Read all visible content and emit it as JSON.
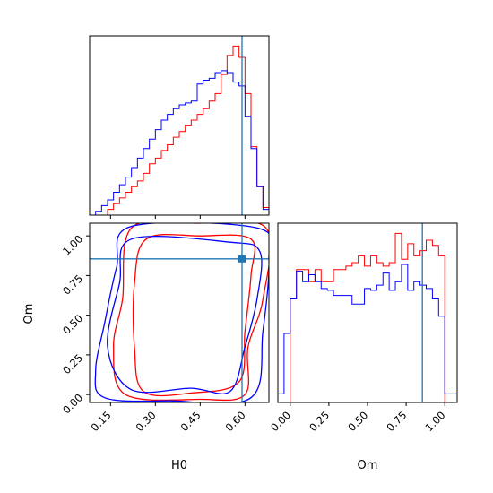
{
  "chart_data": [
    {
      "id": "h0-marginal",
      "type": "histogram",
      "title": "",
      "xlabel": "",
      "ylabel": "",
      "xlim": [
        0.08,
        0.68
      ],
      "truth": 0.59,
      "truth_color": "#1f77b4",
      "bin_edges": [
        0.08,
        0.1,
        0.12,
        0.14,
        0.16,
        0.18,
        0.2,
        0.22,
        0.24,
        0.26,
        0.28,
        0.3,
        0.32,
        0.34,
        0.36,
        0.38,
        0.4,
        0.42,
        0.44,
        0.46,
        0.48,
        0.5,
        0.52,
        0.54,
        0.56,
        0.58,
        0.6,
        0.62,
        0.64,
        0.66,
        0.68
      ],
      "series": [
        {
          "color": "#ff0000",
          "values": [
            0,
            0,
            0,
            0.3,
            0.6,
            0.9,
            1.2,
            1.5,
            1.8,
            2.2,
            2.7,
            3.0,
            3.4,
            3.7,
            4.1,
            4.4,
            4.7,
            5.0,
            5.3,
            5.6,
            6.0,
            6.4,
            7.4,
            8.4,
            8.9,
            8.3,
            6.4,
            3.6,
            1.5,
            0.4
          ]
        },
        {
          "color": "#0000ff",
          "values": [
            0,
            0.2,
            0.5,
            0.8,
            1.2,
            1.6,
            2.0,
            2.5,
            3.0,
            3.5,
            4.0,
            4.5,
            5.0,
            5.3,
            5.6,
            5.8,
            5.9,
            6.0,
            6.9,
            7.1,
            7.2,
            7.5,
            7.6,
            7.5,
            7.0,
            6.8,
            5.2,
            3.5,
            1.5,
            0.3
          ]
        }
      ]
    },
    {
      "id": "joint-contour",
      "type": "contour",
      "title": "",
      "xlabel": "H0",
      "ylabel": "Om",
      "xlim": [
        0.08,
        0.68
      ],
      "ylim": [
        -0.05,
        1.08
      ],
      "xticks": [
        "0.15",
        "0.30",
        "0.45",
        "0.60"
      ],
      "xtick_values": [
        0.15,
        0.3,
        0.45,
        0.6
      ],
      "yticks": [
        "0.00",
        "0.25",
        "0.50",
        "0.75",
        "1.00"
      ],
      "ytick_values": [
        0.0,
        0.25,
        0.5,
        0.75,
        1.0
      ],
      "truth": [
        0.59,
        0.855
      ],
      "truth_color": "#1f77b4",
      "series": [
        {
          "color": "#ff0000",
          "contours": [
            [
              [
                0.2,
                0.0
              ],
              [
                0.45,
                -0.03
              ],
              [
                0.6,
                0.0
              ],
              [
                0.61,
                0.3
              ],
              [
                0.66,
                0.6
              ],
              [
                0.67,
                1.05
              ],
              [
                0.44,
                1.08
              ],
              [
                0.22,
                1.05
              ],
              [
                0.19,
                0.6
              ],
              [
                0.16,
                0.3
              ]
            ],
            [
              [
                0.26,
                0.02
              ],
              [
                0.42,
                0.01
              ],
              [
                0.58,
                0.08
              ],
              [
                0.6,
                0.4
              ],
              [
                0.62,
                0.75
              ],
              [
                0.62,
                0.98
              ],
              [
                0.45,
                1.0
              ],
              [
                0.27,
                0.98
              ],
              [
                0.23,
                0.7
              ],
              [
                0.23,
                0.3
              ]
            ]
          ]
        },
        {
          "color": "#0000ff",
          "contours": [
            [
              [
                0.13,
                -0.02
              ],
              [
                0.35,
                -0.04
              ],
              [
                0.62,
                -0.02
              ],
              [
                0.66,
                0.4
              ],
              [
                0.68,
                0.85
              ],
              [
                0.64,
                1.05
              ],
              [
                0.22,
                1.06
              ],
              [
                0.17,
                0.8
              ],
              [
                0.13,
                0.45
              ],
              [
                0.1,
                0.15
              ]
            ],
            [
              [
                0.22,
                0.03
              ],
              [
                0.42,
                0.04
              ],
              [
                0.55,
                0.02
              ],
              [
                0.6,
                0.3
              ],
              [
                0.64,
                0.6
              ],
              [
                0.65,
                0.9
              ],
              [
                0.55,
                0.96
              ],
              [
                0.22,
                0.98
              ],
              [
                0.18,
                0.7
              ],
              [
                0.14,
                0.3
              ]
            ]
          ]
        }
      ]
    },
    {
      "id": "om-marginal",
      "type": "histogram",
      "title": "",
      "xlabel": "Om",
      "ylabel": "",
      "xlim": [
        -0.08,
        1.08
      ],
      "xticks": [
        "0.00",
        "0.25",
        "0.50",
        "0.75",
        "1.00"
      ],
      "xtick_values": [
        0.0,
        0.25,
        0.5,
        0.75,
        1.0
      ],
      "truth": 0.855,
      "truth_color": "#1f77b4",
      "bin_edges": [
        -0.08,
        -0.04,
        0.0,
        0.04,
        0.08,
        0.12,
        0.16,
        0.2,
        0.24,
        0.28,
        0.32,
        0.36,
        0.4,
        0.44,
        0.48,
        0.52,
        0.56,
        0.6,
        0.64,
        0.68,
        0.72,
        0.76,
        0.8,
        0.84,
        0.88,
        0.92,
        0.96,
        1.0,
        1.04,
        1.08
      ],
      "series": [
        {
          "color": "#ff0000",
          "values": [
            0,
            0,
            6.0,
            7.7,
            7.7,
            7.0,
            7.7,
            7.0,
            7.0,
            7.7,
            7.7,
            7.9,
            8.1,
            8.5,
            7.9,
            8.5,
            8.1,
            7.9,
            8.1,
            9.8,
            8.3,
            9.2,
            8.5,
            8.8,
            9.4,
            9.1,
            8.5,
            0,
            0
          ]
        },
        {
          "color": "#0000ff",
          "values": [
            0.5,
            4.0,
            6.0,
            7.6,
            7.0,
            7.4,
            7.0,
            6.6,
            6.5,
            6.2,
            6.2,
            6.2,
            5.7,
            5.7,
            6.6,
            6.5,
            6.8,
            7.5,
            6.5,
            7.0,
            8.0,
            6.5,
            7.0,
            6.8,
            6.6,
            6.0,
            5.0,
            0.5,
            0.5
          ]
        }
      ]
    }
  ]
}
